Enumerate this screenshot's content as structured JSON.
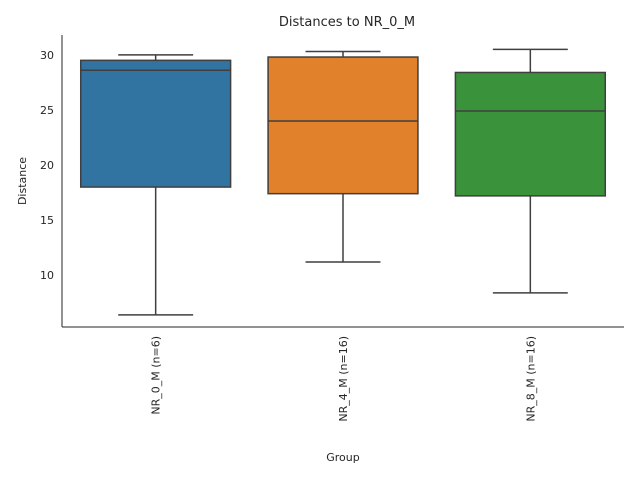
{
  "chart_data": {
    "type": "box",
    "title": "Distances to NR_0_M",
    "xlabel": "Group",
    "ylabel": "Distance",
    "ylim": [
      5.3,
      31.8
    ],
    "yticks": [
      10,
      15,
      20,
      25,
      30
    ],
    "grid": false,
    "categories": [
      "NR_0_M (n=6)",
      "NR_4_M (n=16)",
      "NR_8_M (n=16)"
    ],
    "boxes": [
      {
        "category": "NR_0_M (n=6)",
        "whisker_low": 6.4,
        "q1": 18.0,
        "median": 28.6,
        "q3": 29.5,
        "whisker_high": 30.0,
        "color": "#3274a1"
      },
      {
        "category": "NR_4_M (n=16)",
        "whisker_low": 11.2,
        "q1": 17.4,
        "median": 24.0,
        "q3": 29.8,
        "whisker_high": 30.3,
        "color": "#e1812c"
      },
      {
        "category": "NR_8_M (n=16)",
        "whisker_low": 8.4,
        "q1": 17.2,
        "median": 24.9,
        "q3": 28.4,
        "whisker_high": 30.5,
        "color": "#3a923a"
      }
    ]
  }
}
